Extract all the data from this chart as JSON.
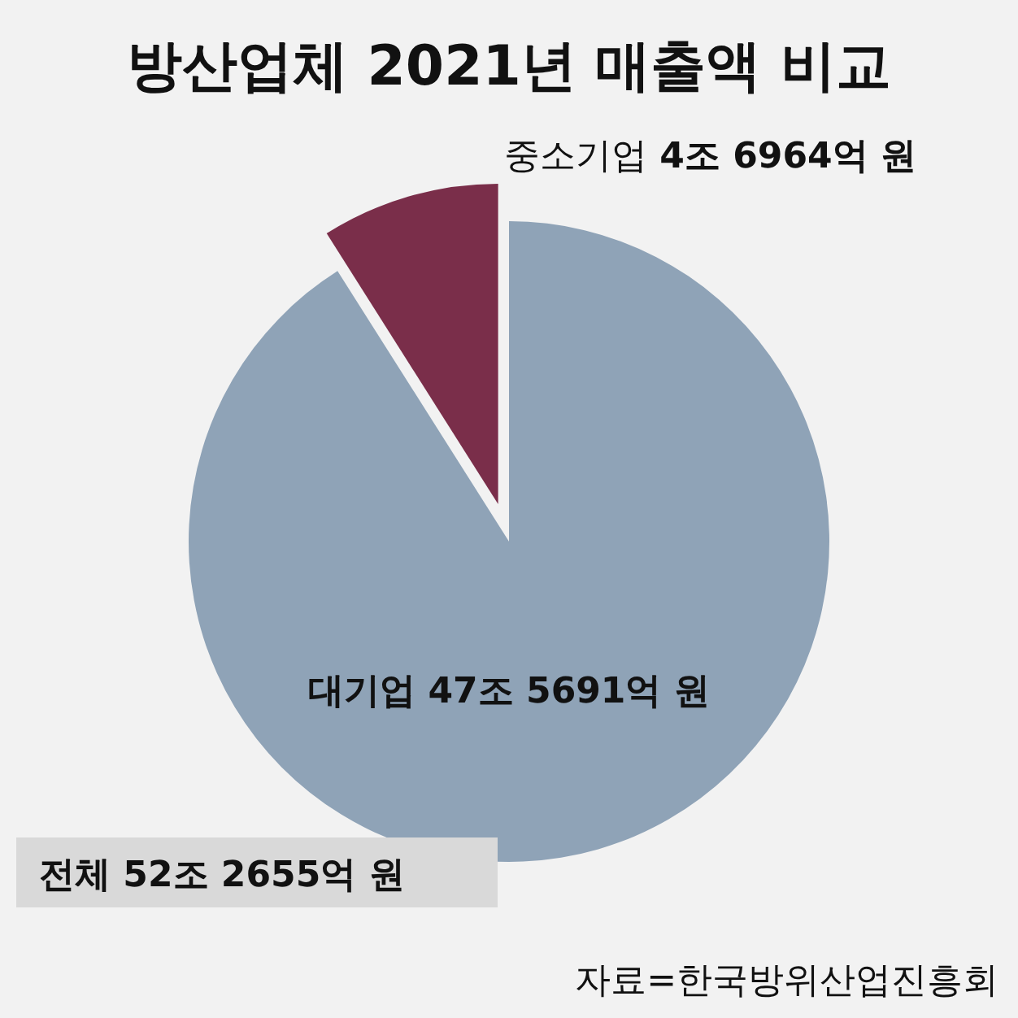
{
  "chart_data": {
    "type": "pie",
    "title": "방산업체 2021년 매출액 비교",
    "categories": [
      "대기업 47조 5691억 원",
      "중소기업  4조 6964억 원"
    ],
    "values": [
      91.01,
      8.99
    ],
    "colors": [
      "#8fa3b7",
      "#7a2e4a"
    ],
    "annotations": [
      "전체  52조 2655억 원",
      "자료=한국방위산업진흥회"
    ]
  }
}
